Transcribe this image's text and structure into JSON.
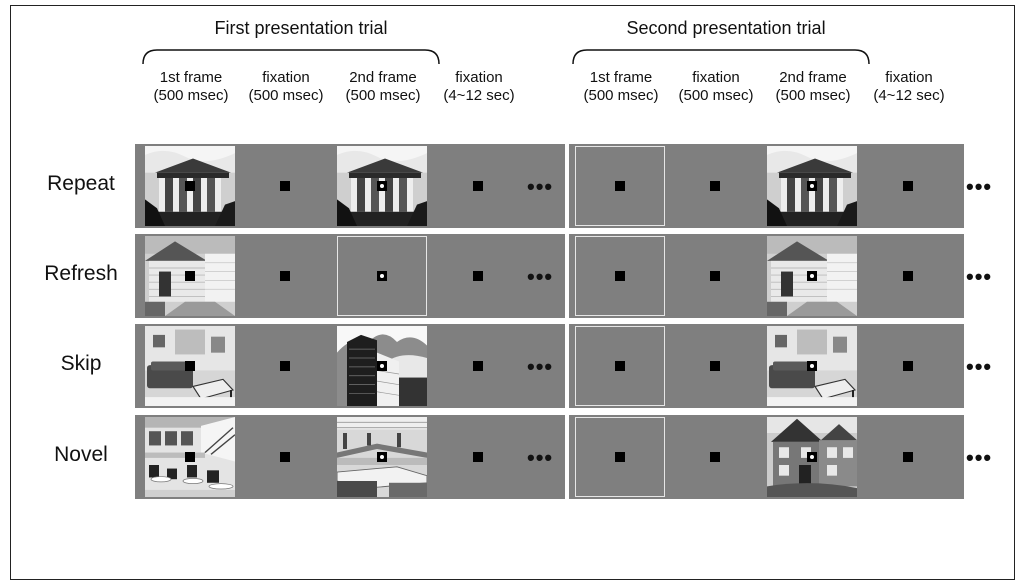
{
  "trials": [
    {
      "title": "First presentation trial"
    },
    {
      "title": "Second presentation trial"
    }
  ],
  "columns": [
    {
      "label": "1st frame",
      "duration": "(500 msec)"
    },
    {
      "label": "fixation",
      "duration": "(500 msec)"
    },
    {
      "label": "2nd frame",
      "duration": "(500 msec)"
    },
    {
      "label": "fixation",
      "duration": "(4~12 sec)"
    }
  ],
  "ellipsis": "•••",
  "rows": [
    {
      "label": "Repeat",
      "first": [
        "building-photo",
        "fixation",
        "building-photo",
        "fixation"
      ],
      "second": [
        "blank",
        "fixation",
        "building-photo",
        "fixation"
      ]
    },
    {
      "label": "Refresh",
      "first": [
        "house-photo",
        "fixation",
        "blank",
        "fixation"
      ],
      "second": [
        "blank",
        "fixation",
        "house-photo",
        "fixation"
      ]
    },
    {
      "label": "Skip",
      "first": [
        "living-room-photo",
        "fixation",
        "skyscraper-photo",
        "fixation"
      ],
      "second": [
        "blank",
        "fixation",
        "living-room-photo",
        "fixation"
      ]
    },
    {
      "label": "Novel",
      "first": [
        "cafeteria-photo",
        "fixation",
        "laboratory-photo",
        "fixation"
      ],
      "second": [
        "blank",
        "fixation",
        "townhouse-photo",
        "fixation"
      ]
    }
  ]
}
